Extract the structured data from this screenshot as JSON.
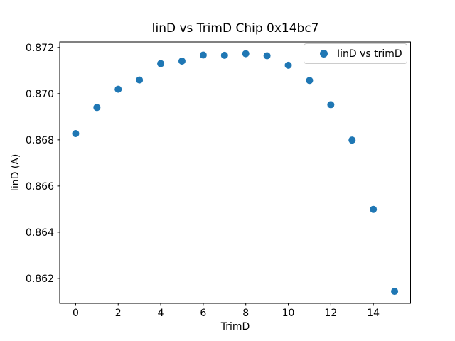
{
  "chart_data": {
    "type": "scatter",
    "title": "IinD vs TrimD Chip 0x14bc7",
    "xlabel": "TrimD",
    "ylabel": "IinD (A)",
    "legend": {
      "label": "IinD vs trimD",
      "position": "upper right"
    },
    "x": [
      0,
      1,
      2,
      3,
      4,
      5,
      6,
      7,
      8,
      9,
      10,
      11,
      12,
      13,
      14,
      15
    ],
    "y": [
      0.86827,
      0.8694,
      0.87019,
      0.87059,
      0.8713,
      0.87141,
      0.87167,
      0.87166,
      0.87173,
      0.87164,
      0.87123,
      0.87057,
      0.86952,
      0.86799,
      0.86499,
      0.86144
    ],
    "xlim": [
      -0.75,
      15.75
    ],
    "ylim": [
      0.86092,
      0.87224
    ],
    "xticks": {
      "values": [
        0,
        2,
        4,
        6,
        8,
        10,
        12,
        14
      ],
      "labels": [
        "0",
        "2",
        "4",
        "6",
        "8",
        "10",
        "12",
        "14"
      ]
    },
    "yticks": {
      "values": [
        0.862,
        0.864,
        0.866,
        0.868,
        0.87,
        0.872
      ],
      "labels": [
        "0.862",
        "0.864",
        "0.866",
        "0.868",
        "0.870",
        "0.872"
      ]
    },
    "marker_color": "#1f77b4",
    "axis_color": "#000000",
    "grid": false
  }
}
